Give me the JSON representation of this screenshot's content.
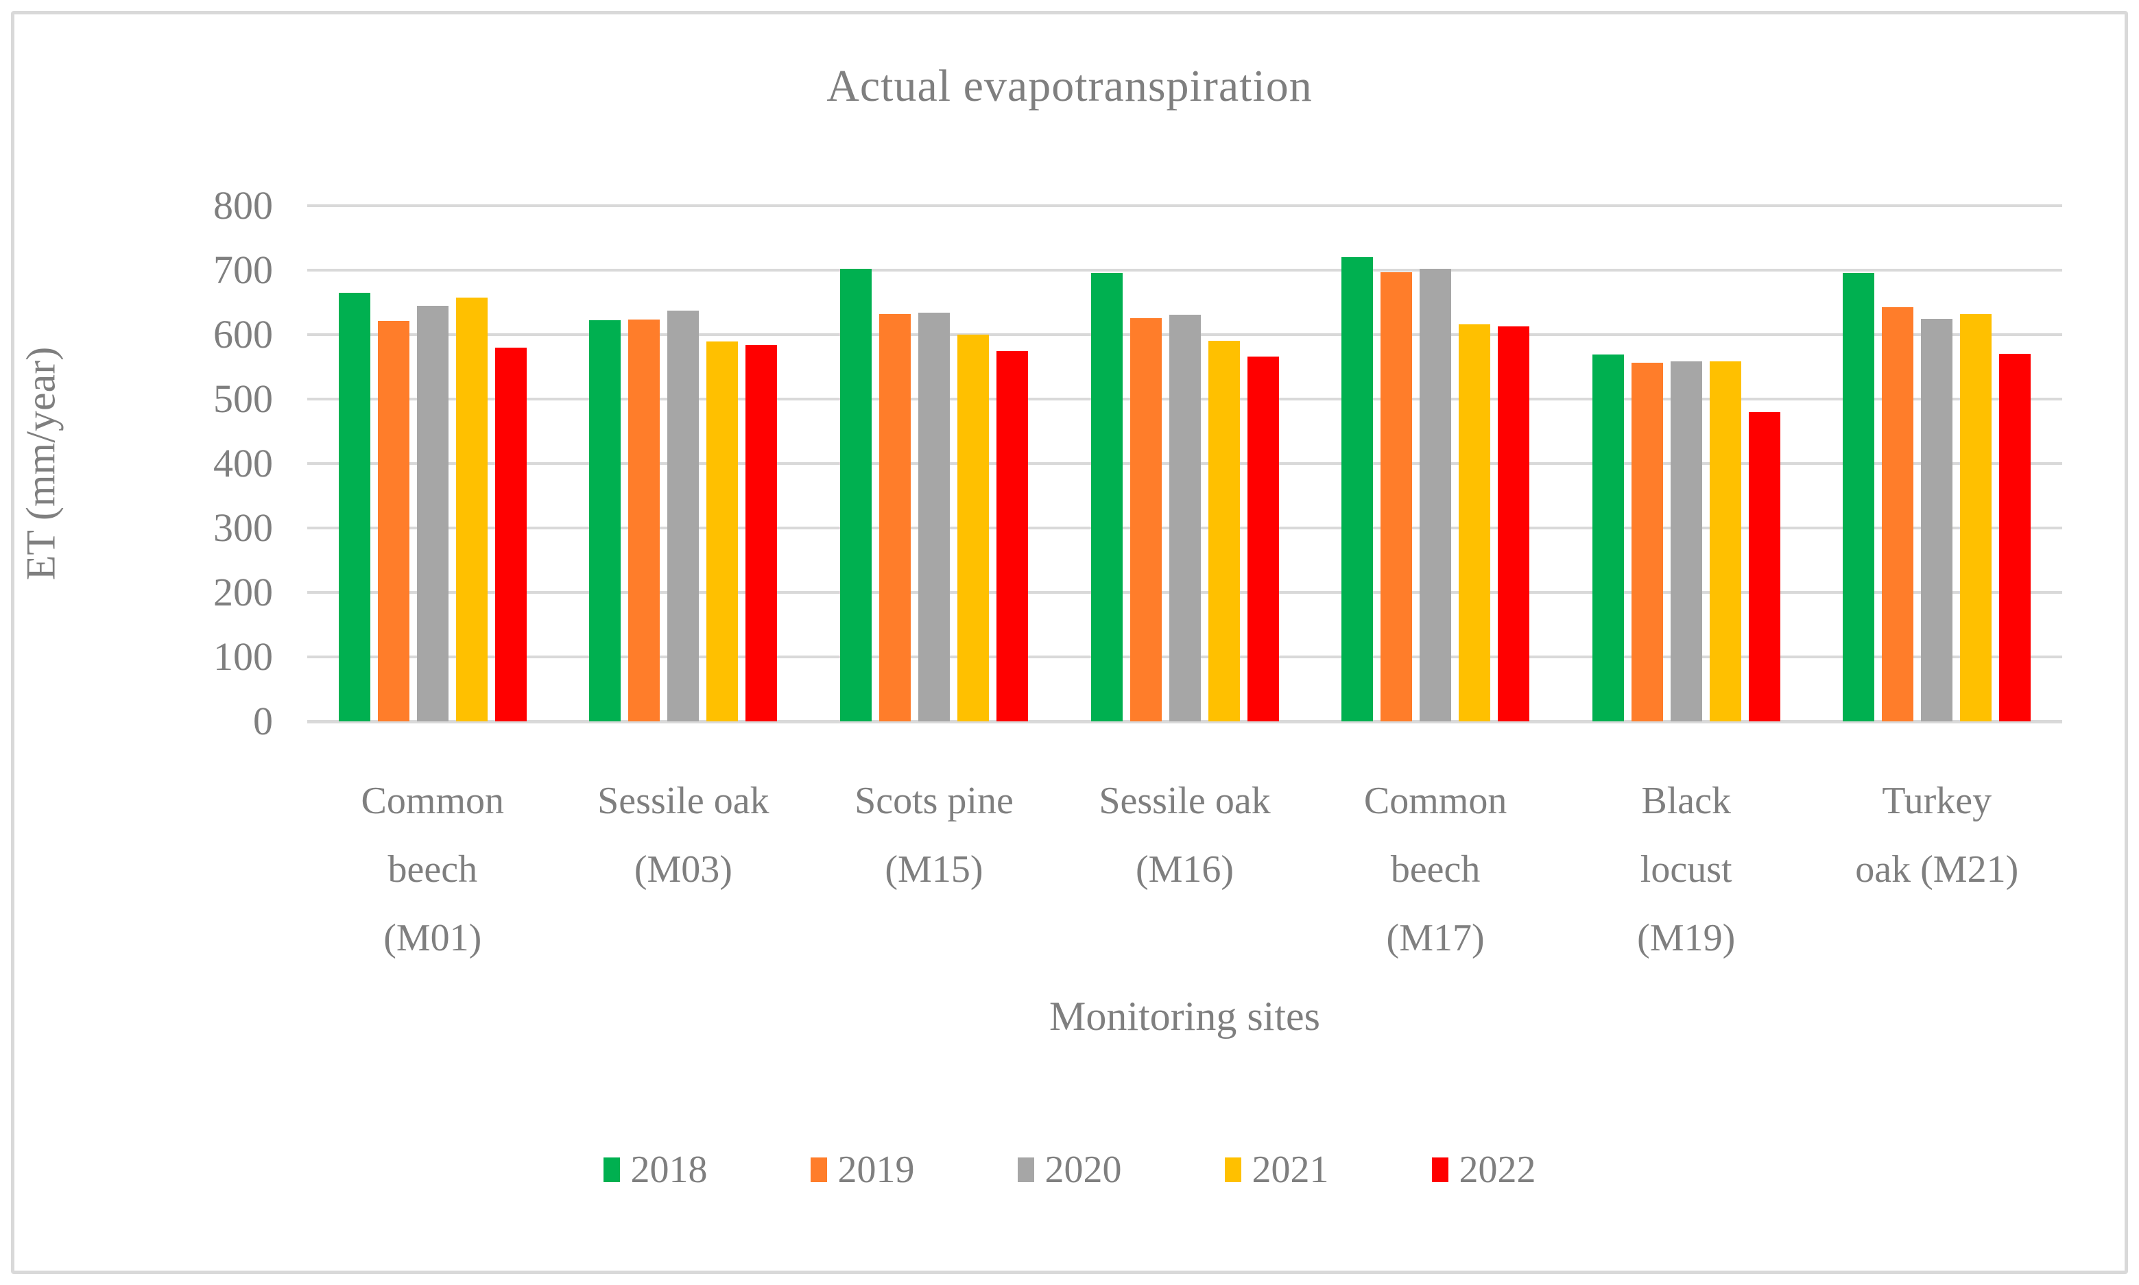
{
  "chart_data": {
    "type": "bar",
    "title": "Actual evapotranspiration",
    "xlabel": "Monitoring sites",
    "ylabel": "ET (mm/year)",
    "ylim": [
      0,
      800
    ],
    "ytick_step": 100,
    "ytick_labels": [
      "800",
      "700",
      "600",
      "500",
      "400",
      "300",
      "200",
      "100",
      "0"
    ],
    "grid": true,
    "legend_position": "bottom",
    "categories": [
      "Common beech (M01)",
      "Sessile oak (M03)",
      "Scots pine (M15)",
      "Sessile oak (M16)",
      "Common beech (M17)",
      "Black locust (M19)",
      "Turkey oak (M21)"
    ],
    "category_lines": [
      [
        "Common",
        "beech",
        "(M01)"
      ],
      [
        "Sessile oak",
        "(M03)"
      ],
      [
        "Scots pine",
        "(M15)"
      ],
      [
        "Sessile oak",
        "(M16)"
      ],
      [
        "Common",
        "beech",
        "(M17)"
      ],
      [
        "Black",
        "locust",
        "(M19)"
      ],
      [
        "Turkey",
        "oak (M21)"
      ]
    ],
    "series": [
      {
        "name": "2018",
        "color": "#00B050",
        "values": [
          665,
          622,
          702,
          696,
          720,
          569,
          696
        ]
      },
      {
        "name": "2019",
        "color": "#FF7D2A",
        "values": [
          621,
          623,
          632,
          626,
          697,
          556,
          643
        ]
      },
      {
        "name": "2020",
        "color": "#A6A6A6",
        "values": [
          645,
          637,
          634,
          631,
          702,
          558,
          625
        ]
      },
      {
        "name": "2021",
        "color": "#FFC000",
        "values": [
          657,
          589,
          600,
          590,
          616,
          559,
          632
        ]
      },
      {
        "name": "2022",
        "color": "#FF0000",
        "values": [
          580,
          584,
          575,
          566,
          613,
          480,
          570
        ]
      }
    ]
  },
  "colors": {
    "gridline": "#D9D9D9",
    "frame_border": "#D9D9D9",
    "text": "#7F7F7F",
    "background": "#FFFFFF"
  }
}
